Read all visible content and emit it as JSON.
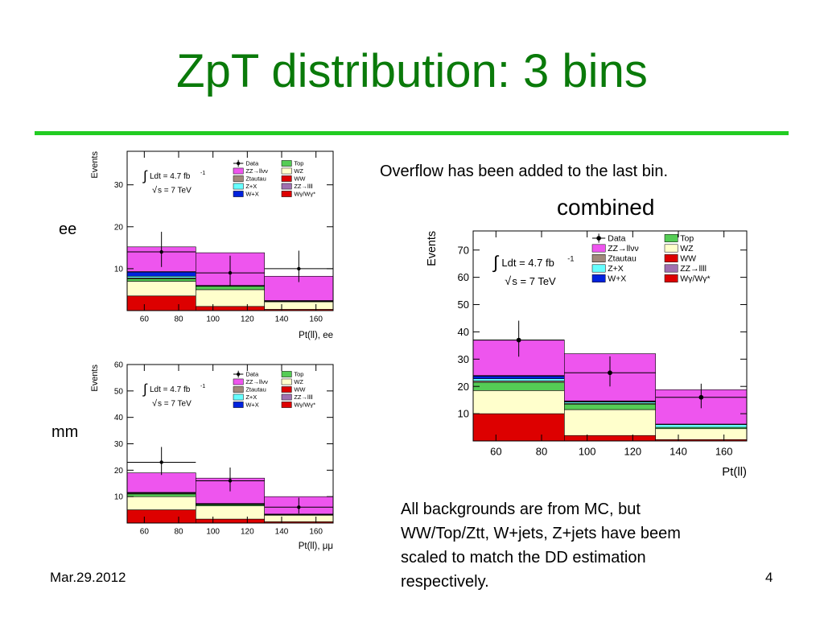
{
  "slide": {
    "title": "ZpT distribution: 3 bins",
    "note_overflow": "Overflow has been added to the last bin.",
    "label_combined": "combined",
    "label_ee": "ee",
    "label_mm": "mm",
    "note_backgrounds": [
      "All backgrounds are from MC, but",
      "WW/Top/Ztt, W+jets, Z+jets have beem",
      "scaled to match the DD estimation",
      "respectively."
    ],
    "date": "Mar.29.2012",
    "page": "4"
  },
  "colors": {
    "title": "#0a7a0a",
    "rule": "#22cc22",
    "WW": "#dd0000",
    "WZ": "#ffffcc",
    "Top": "#55cc55",
    "Ztautau": "#a0887a",
    "Z+X": "#66ffff",
    "W+X": "#0022dd",
    "ZZ->llll": "#a070b0",
    "ZZ->llvv": "#ee55ee",
    "Wg": "#dd0000"
  },
  "chart_data": [
    {
      "id": "ee",
      "type": "bar",
      "stacked": true,
      "xlabel": "Pt(ll), ee",
      "ylabel": "Events",
      "bin_edges": [
        50,
        90,
        130,
        170
      ],
      "xticks": [
        60,
        80,
        100,
        120,
        140,
        160
      ],
      "ylim": [
        0,
        38
      ],
      "yticks": [
        10,
        20,
        30
      ],
      "lumi_text": "Ldt = 4.7 fb",
      "lumi_exp": "-1",
      "energy_text": "s = 7 TeV",
      "series": [
        {
          "name": "WW",
          "color_key": "WW",
          "values": [
            3.5,
            1.0,
            0.3
          ]
        },
        {
          "name": "WZ",
          "color_key": "WZ",
          "values": [
            3.5,
            4.0,
            1.8
          ]
        },
        {
          "name": "Top",
          "color_key": "Top",
          "values": [
            0.6,
            0.8,
            0.1
          ]
        },
        {
          "name": "Ztautau",
          "color_key": "Ztautau",
          "values": [
            0.2,
            0.0,
            0.0
          ]
        },
        {
          "name": "Z+X",
          "color_key": "Z+X",
          "values": [
            0.4,
            0.1,
            0.1
          ]
        },
        {
          "name": "W+X",
          "color_key": "W+X",
          "values": [
            1.0,
            0.0,
            0.0
          ]
        },
        {
          "name": "ZZ→llll",
          "color_key": "ZZ->llll",
          "values": [
            0.1,
            0.1,
            0.1
          ]
        },
        {
          "name": "ZZ→llνν",
          "color_key": "ZZ->llvv",
          "values": [
            5.9,
            7.8,
            5.8
          ]
        }
      ],
      "data": {
        "values": [
          14,
          9,
          10
        ],
        "err_low": [
          3.6,
          3.0,
          3.2
        ],
        "err_high": [
          4.8,
          4.1,
          4.3
        ]
      },
      "legend": [
        {
          "label": "Data",
          "kind": "data"
        },
        {
          "label": "Top",
          "color_key": "Top"
        },
        {
          "label": "ZZ→llνν",
          "color_key": "ZZ->llvv"
        },
        {
          "label": "WZ",
          "color_key": "WZ"
        },
        {
          "label": "Ztautau",
          "color_key": "Ztautau"
        },
        {
          "label": "WW",
          "color_key": "WW"
        },
        {
          "label": "Z+X",
          "color_key": "Z+X"
        },
        {
          "label": "ZZ→llll",
          "color_key": "ZZ->llll"
        },
        {
          "label": "W+X",
          "color_key": "W+X"
        },
        {
          "label": "Wγ/Wγ*",
          "color_key": "Wg"
        }
      ]
    },
    {
      "id": "mm",
      "type": "bar",
      "stacked": true,
      "xlabel": "Pt(ll), μμ",
      "ylabel": "Events",
      "bin_edges": [
        50,
        90,
        130,
        170
      ],
      "xticks": [
        60,
        80,
        100,
        120,
        140,
        160
      ],
      "ylim": [
        0,
        60
      ],
      "yticks": [
        10,
        20,
        30,
        40,
        50,
        60
      ],
      "lumi_text": "Ldt = 4.7 fb",
      "lumi_exp": "-1",
      "energy_text": "s = 7 TeV",
      "series": [
        {
          "name": "WW",
          "color_key": "WW",
          "values": [
            5.0,
            1.5,
            0.5
          ]
        },
        {
          "name": "WZ",
          "color_key": "WZ",
          "values": [
            5.0,
            5.0,
            2.5
          ]
        },
        {
          "name": "Top",
          "color_key": "Top",
          "values": [
            1.0,
            0.5,
            0.1
          ]
        },
        {
          "name": "Ztautau",
          "color_key": "Ztautau",
          "values": [
            0.3,
            0.1,
            0.0
          ]
        },
        {
          "name": "Z+X",
          "color_key": "Z+X",
          "values": [
            0.2,
            0.2,
            0.2
          ]
        },
        {
          "name": "ZZ→llll",
          "color_key": "ZZ->llll",
          "values": [
            0.1,
            0.1,
            0.1
          ]
        },
        {
          "name": "ZZ→llνν",
          "color_key": "ZZ->llvv",
          "values": [
            7.4,
            9.6,
            6.6
          ]
        }
      ],
      "data": {
        "values": [
          23,
          16,
          6
        ],
        "err_low": [
          4.8,
          4.0,
          2.4
        ],
        "err_high": [
          5.8,
          5.0,
          3.6
        ]
      },
      "legend": [
        {
          "label": "Data",
          "kind": "data"
        },
        {
          "label": "Top",
          "color_key": "Top"
        },
        {
          "label": "ZZ→llνν",
          "color_key": "ZZ->llvv"
        },
        {
          "label": "WZ",
          "color_key": "WZ"
        },
        {
          "label": "Ztautau",
          "color_key": "Ztautau"
        },
        {
          "label": "WW",
          "color_key": "WW"
        },
        {
          "label": "Z+X",
          "color_key": "Z+X"
        },
        {
          "label": "ZZ→llll",
          "color_key": "ZZ->llll"
        },
        {
          "label": "W+X",
          "color_key": "W+X"
        },
        {
          "label": "Wγ/Wγ*",
          "color_key": "Wg"
        }
      ]
    },
    {
      "id": "combined",
      "type": "bar",
      "stacked": true,
      "xlabel": "Pt(ll)",
      "ylabel": "Events",
      "bin_edges": [
        50,
        90,
        130,
        170
      ],
      "xticks": [
        60,
        80,
        100,
        120,
        140,
        160
      ],
      "ylim": [
        0,
        77
      ],
      "yticks": [
        10,
        20,
        30,
        40,
        50,
        60,
        70
      ],
      "lumi_text": "Ldt = 4.7 fb",
      "lumi_exp": "-1",
      "energy_text": "s = 7 TeV",
      "series": [
        {
          "name": "WW",
          "color_key": "WW",
          "values": [
            10.0,
            2.0,
            0.5
          ]
        },
        {
          "name": "WZ",
          "color_key": "WZ",
          "values": [
            8.5,
            9.5,
            4.0
          ]
        },
        {
          "name": "Top",
          "color_key": "Top",
          "values": [
            3.0,
            2.0,
            0.5
          ]
        },
        {
          "name": "Ztautau",
          "color_key": "Ztautau",
          "values": [
            0.5,
            0.3,
            0.0
          ]
        },
        {
          "name": "Z+X",
          "color_key": "Z+X",
          "values": [
            0.8,
            0.5,
            1.0
          ]
        },
        {
          "name": "W+X",
          "color_key": "W+X",
          "values": [
            1.0,
            0.2,
            0.0
          ]
        },
        {
          "name": "ZZ→llll",
          "color_key": "ZZ->llll",
          "values": [
            0.2,
            0.2,
            0.2
          ]
        },
        {
          "name": "ZZ→llνν",
          "color_key": "ZZ->llvv",
          "values": [
            13.0,
            17.3,
            12.6
          ]
        }
      ],
      "data": {
        "values": [
          37,
          25,
          16
        ],
        "err_low": [
          6.1,
          5.0,
          4.0
        ],
        "err_high": [
          7.1,
          6.0,
          5.0
        ]
      },
      "legend": [
        {
          "label": "Data",
          "kind": "data"
        },
        {
          "label": "Top",
          "color_key": "Top"
        },
        {
          "label": "ZZ→llνν",
          "color_key": "ZZ->llvv"
        },
        {
          "label": "WZ",
          "color_key": "WZ"
        },
        {
          "label": "Ztautau",
          "color_key": "Ztautau"
        },
        {
          "label": "WW",
          "color_key": "WW"
        },
        {
          "label": "Z+X",
          "color_key": "Z+X"
        },
        {
          "label": "ZZ→llll",
          "color_key": "ZZ->llll"
        },
        {
          "label": "W+X",
          "color_key": "W+X"
        },
        {
          "label": "Wγ/Wγ*",
          "color_key": "Wg"
        }
      ]
    }
  ]
}
